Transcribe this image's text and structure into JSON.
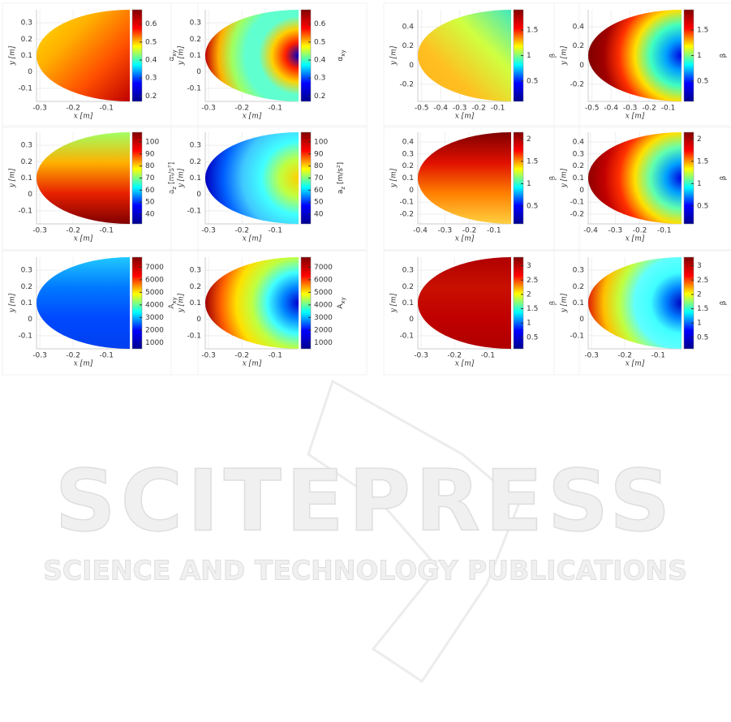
{
  "colormap": [
    "#00008f",
    "#0000ff",
    "#00ffff",
    "#ffff00",
    "#ff0000",
    "#800000"
  ],
  "watermark": {
    "title": "SCITEPRESS",
    "subtitle": "SCIENCE AND TECHNOLOGY PUBLICATIONS"
  },
  "plots": [
    {
      "xlabel": "x [m]",
      "ylabel": "y [m]",
      "xlim": [
        -0.31,
        -0.03
      ],
      "xticks": [
        -0.3,
        -0.2,
        -0.1
      ],
      "ylim": [
        -0.18,
        0.38
      ],
      "yticks": [
        -0.1,
        0,
        0.1,
        0.2,
        0.3
      ],
      "colorbar": {
        "clim": [
          0.17,
          0.68
        ],
        "ticks": [
          0.2,
          0.3,
          0.4,
          0.5,
          0.6
        ],
        "label": {
          "base": "α",
          "sub": "xy"
        }
      },
      "fill": {
        "kind": "linear",
        "direction": "down-right",
        "colors": [
          "#ffe000",
          "#ffb000",
          "#ff5000",
          "#c00000"
        ]
      }
    },
    {
      "xlabel": "x [m]",
      "ylabel": "y [m]",
      "xlim": [
        -0.31,
        -0.03
      ],
      "xticks": [
        -0.3,
        -0.2,
        -0.1
      ],
      "ylim": [
        -0.18,
        0.38
      ],
      "yticks": [
        -0.1,
        0,
        0.1,
        0.2,
        0.3
      ],
      "colorbar": {
        "clim": [
          0.17,
          0.68
        ],
        "ticks": [
          0.2,
          0.3,
          0.4,
          0.5,
          0.6
        ],
        "label": {
          "base": "α",
          "sub": "xy"
        }
      },
      "fill": {
        "kind": "radial",
        "colors": [
          "#0000c0",
          "#ff2000",
          "#ffd000",
          "#60ffd0",
          "#60ffd0",
          "#a0ff60",
          "#ffb000",
          "#c00000"
        ]
      }
    },
    {
      "xlabel": "x [m]",
      "ylabel": "y [m]",
      "xlim": [
        -0.52,
        -0.03
      ],
      "xticks": [
        -0.5,
        -0.4,
        -0.3,
        -0.2,
        -0.1
      ],
      "ylim": [
        -0.38,
        0.58
      ],
      "yticks": [
        -0.2,
        0,
        0.2,
        0.4
      ],
      "colorbar": {
        "clim": [
          0.1,
          1.9
        ],
        "ticks": [
          0.5,
          1,
          1.5
        ],
        "label": {
          "base": "β"
        }
      },
      "fill": {
        "kind": "linear",
        "direction": "down-left",
        "colors": [
          "#40e8c0",
          "#d0ff40",
          "#ffc020",
          "#ffb020"
        ]
      }
    },
    {
      "xlabel": "x [m]",
      "ylabel": "y [m]",
      "xlim": [
        -0.52,
        -0.03
      ],
      "xticks": [
        -0.5,
        -0.4,
        -0.3,
        -0.2,
        -0.1
      ],
      "ylim": [
        -0.38,
        0.58
      ],
      "yticks": [
        -0.2,
        0,
        0.2,
        0.4
      ],
      "colorbar": {
        "clim": [
          0.1,
          1.9
        ],
        "ticks": [
          0.5,
          1,
          1.5
        ],
        "label": {
          "base": "β"
        }
      },
      "fill": {
        "kind": "radial",
        "colors": [
          "#0000e0",
          "#00a0ff",
          "#40ffc0",
          "#ffe000",
          "#ff3000",
          "#a00000",
          "#800000"
        ]
      }
    },
    {
      "xlabel": "x [m]",
      "ylabel": "y [m]",
      "xlim": [
        -0.31,
        -0.03
      ],
      "xticks": [
        -0.3,
        -0.2,
        -0.1
      ],
      "ylim": [
        -0.18,
        0.38
      ],
      "yticks": [
        -0.1,
        0,
        0.1,
        0.2,
        0.3
      ],
      "colorbar": {
        "clim": [
          32,
          108
        ],
        "ticks": [
          40,
          50,
          60,
          70,
          80,
          90,
          100
        ],
        "label": {
          "base": "a",
          "sub": "z",
          "suffix": " [m/s²]"
        }
      },
      "fill": {
        "kind": "linear",
        "direction": "down",
        "colors": [
          "#a0ff60",
          "#ffb000",
          "#e82000",
          "#800000"
        ]
      }
    },
    {
      "xlabel": "x [m]",
      "ylabel": "y [m]",
      "xlim": [
        -0.31,
        -0.03
      ],
      "xticks": [
        -0.3,
        -0.2,
        -0.1
      ],
      "ylim": [
        -0.18,
        0.38
      ],
      "yticks": [
        -0.1,
        0,
        0.1,
        0.2,
        0.3
      ],
      "colorbar": {
        "clim": [
          32,
          108
        ],
        "ticks": [
          40,
          50,
          60,
          70,
          80,
          90,
          100
        ],
        "label": {
          "base": "a",
          "sub": "z",
          "suffix": " [m/s²]"
        }
      },
      "fill": {
        "kind": "radial",
        "colors": [
          "#ffd000",
          "#c0ff40",
          "#40ffff",
          "#40c8ff",
          "#0060ff",
          "#0000c0"
        ]
      }
    },
    {
      "xlabel": "x [m]",
      "ylabel": "y [m]",
      "xlim": [
        -0.41,
        -0.03
      ],
      "xticks": [
        -0.4,
        -0.3,
        -0.2,
        -0.1
      ],
      "ylim": [
        -0.28,
        0.48
      ],
      "yticks": [
        -0.2,
        -0.1,
        0,
        0.1,
        0.2,
        0.3,
        0.4
      ],
      "colorbar": {
        "clim": [
          0.1,
          2.15
        ],
        "ticks": [
          0.5,
          1,
          1.5,
          2
        ],
        "label": {
          "base": "β"
        }
      },
      "fill": {
        "kind": "linear",
        "direction": "down",
        "colors": [
          "#800000",
          "#e01000",
          "#ff8000",
          "#ffd040"
        ]
      }
    },
    {
      "xlabel": "x [m]",
      "ylabel": "y [m]",
      "xlim": [
        -0.41,
        -0.03
      ],
      "xticks": [
        -0.4,
        -0.3,
        -0.2,
        -0.1
      ],
      "ylim": [
        -0.28,
        0.48
      ],
      "yticks": [
        -0.2,
        -0.1,
        0,
        0.1,
        0.2,
        0.3,
        0.4
      ],
      "colorbar": {
        "clim": [
          0.1,
          2.15
        ],
        "ticks": [
          0.5,
          1,
          1.5,
          2
        ],
        "label": {
          "base": "β"
        }
      },
      "fill": {
        "kind": "radial",
        "colors": [
          "#0000e0",
          "#00a0ff",
          "#60ffb0",
          "#ffe000",
          "#ff3000",
          "#c00000",
          "#900000"
        ]
      }
    },
    {
      "xlabel": "x [m]",
      "ylabel": "y [m]",
      "xlim": [
        -0.31,
        -0.03
      ],
      "xticks": [
        -0.3,
        -0.2,
        -0.1
      ],
      "ylim": [
        -0.18,
        0.38
      ],
      "yticks": [
        -0.1,
        0,
        0.1,
        0.2,
        0.3
      ],
      "colorbar": {
        "clim": [
          500,
          7800
        ],
        "ticks": [
          1000,
          2000,
          3000,
          4000,
          5000,
          6000,
          7000
        ],
        "label": {
          "base": "A",
          "sub": "xy"
        }
      },
      "fill": {
        "kind": "linear",
        "direction": "down",
        "colors": [
          "#20c8ff",
          "#0078ff",
          "#0048ff",
          "#0040f0"
        ]
      }
    },
    {
      "xlabel": "x [m]",
      "ylabel": "y [m]",
      "xlim": [
        -0.31,
        -0.03
      ],
      "xticks": [
        -0.3,
        -0.2,
        -0.1
      ],
      "ylim": [
        -0.18,
        0.38
      ],
      "yticks": [
        -0.1,
        0,
        0.1,
        0.2,
        0.3
      ],
      "colorbar": {
        "clim": [
          500,
          7800
        ],
        "ticks": [
          1000,
          2000,
          3000,
          4000,
          5000,
          6000,
          7000
        ],
        "label": {
          "base": "A",
          "sub": "xy"
        }
      },
      "fill": {
        "kind": "radial",
        "colors": [
          "#0000d0",
          "#0080ff",
          "#40ffff",
          "#c0ff40",
          "#ffe000",
          "#ff6000",
          "#a00000"
        ]
      }
    },
    {
      "xlabel": "x [m]",
      "ylabel": "y [m]",
      "xlim": [
        -0.31,
        -0.03
      ],
      "xticks": [
        -0.3,
        -0.2,
        -0.1
      ],
      "ylim": [
        -0.18,
        0.38
      ],
      "yticks": [
        -0.1,
        0,
        0.1,
        0.2,
        0.3
      ],
      "colorbar": {
        "clim": [
          0.1,
          3.3
        ],
        "ticks": [
          0.5,
          1,
          1.5,
          2,
          2.5,
          3
        ],
        "label": {
          "base": "β"
        }
      },
      "fill": {
        "kind": "linear",
        "direction": "down",
        "colors": [
          "#b00000",
          "#c81000",
          "#c00000",
          "#b00000"
        ]
      }
    },
    {
      "xlabel": "x [m]",
      "ylabel": "y [m]",
      "xlim": [
        -0.31,
        -0.03
      ],
      "xticks": [
        -0.3,
        -0.2,
        -0.1
      ],
      "ylim": [
        -0.18,
        0.38
      ],
      "yticks": [
        -0.1,
        0,
        0.1,
        0.2,
        0.3
      ],
      "colorbar": {
        "clim": [
          0.1,
          3.3
        ],
        "ticks": [
          0.5,
          1,
          1.5,
          2,
          2.5,
          3
        ],
        "label": {
          "base": "β"
        }
      },
      "fill": {
        "kind": "radial",
        "colors": [
          "#0000c0",
          "#0080ff",
          "#40ffff",
          "#60ffff",
          "#c0ff40",
          "#ffc000",
          "#e02000"
        ]
      }
    }
  ]
}
